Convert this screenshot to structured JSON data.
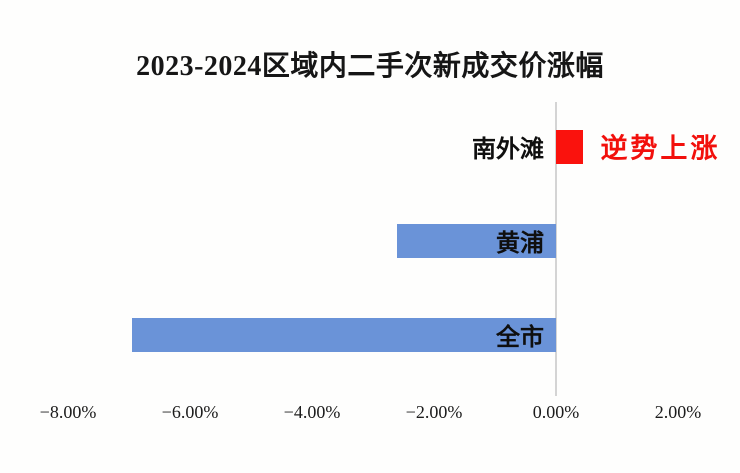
{
  "page": {
    "background": "#FEFEFD"
  },
  "chart_data": {
    "type": "bar",
    "orientation": "horizontal",
    "title": "2023-2024区域内二手次新成交价涨幅",
    "categories": [
      "南外滩",
      "黄浦",
      "全市"
    ],
    "values": [
      0.45,
      -2.6,
      -6.95
    ],
    "value_unit": "percent",
    "bar_colors": [
      "#FA120D",
      "#6A93D8",
      "#6A93D8"
    ],
    "xlabel": "",
    "ylabel": "",
    "xlim": [
      -8,
      2
    ],
    "x_ticks": [
      "−8.00%",
      "−6.00%",
      "−4.00%",
      "−2.00%",
      "0.00%",
      "2.00%"
    ],
    "x_tick_values": [
      -8,
      -6,
      -4,
      -2,
      0,
      2
    ],
    "grid": false,
    "legend": false,
    "annotations": [
      {
        "category": "南外滩",
        "text": "逆势上涨",
        "color": "#F2100C"
      }
    ],
    "axis_line_color": "#D4D4D4",
    "category_label_color": "#0F0F0F",
    "tick_label_color": "#1C1C1C",
    "title_color": "#161616"
  }
}
